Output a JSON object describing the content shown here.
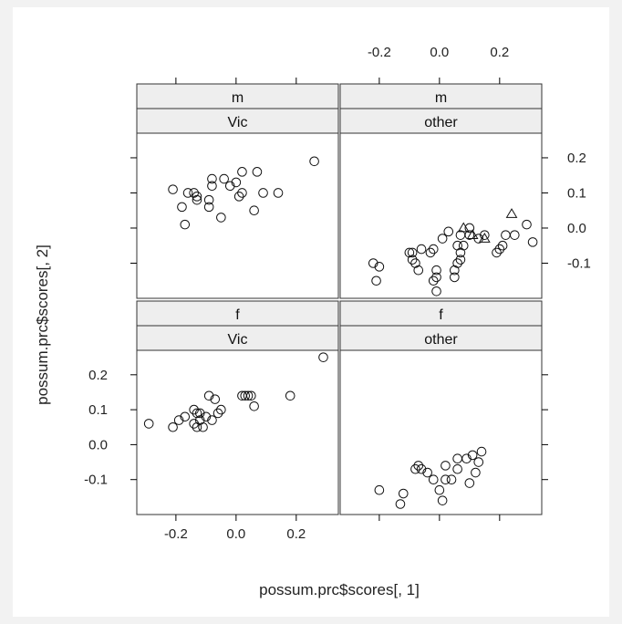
{
  "chart_data": {
    "type": "scatter",
    "layout": "lattice 2x2",
    "xlabel": "possum.prc$scores[, 1]",
    "ylabel": "possum.prc$scores[, 2]",
    "xlim": [
      -0.33,
      0.34
    ],
    "ylim": [
      -0.2,
      0.27
    ],
    "xticks": [
      -0.2,
      0.0,
      0.2
    ],
    "xtick_labels": [
      "-0.2",
      "0.0",
      "0.2"
    ],
    "yticks": [
      -0.1,
      0.0,
      0.1,
      0.2
    ],
    "ytick_labels": [
      "-0.1",
      "0.0",
      "0.1",
      "0.2"
    ],
    "grid": false,
    "background": "#ffffff",
    "strip_color": "#eeeeee",
    "panels": [
      {
        "sex": "m",
        "pop": "Vic",
        "points": [
          {
            "x": -0.21,
            "y": 0.11
          },
          {
            "x": -0.18,
            "y": 0.06
          },
          {
            "x": -0.17,
            "y": 0.01
          },
          {
            "x": -0.16,
            "y": 0.1
          },
          {
            "x": -0.14,
            "y": 0.1
          },
          {
            "x": -0.13,
            "y": 0.08
          },
          {
            "x": -0.13,
            "y": 0.09
          },
          {
            "x": -0.09,
            "y": 0.08
          },
          {
            "x": -0.09,
            "y": 0.06
          },
          {
            "x": -0.08,
            "y": 0.12
          },
          {
            "x": -0.08,
            "y": 0.14
          },
          {
            "x": -0.05,
            "y": 0.03
          },
          {
            "x": -0.04,
            "y": 0.14
          },
          {
            "x": -0.02,
            "y": 0.12
          },
          {
            "x": 0.0,
            "y": 0.13
          },
          {
            "x": 0.01,
            "y": 0.09
          },
          {
            "x": 0.02,
            "y": 0.1
          },
          {
            "x": 0.02,
            "y": 0.16
          },
          {
            "x": 0.06,
            "y": 0.05
          },
          {
            "x": 0.07,
            "y": 0.16
          },
          {
            "x": 0.09,
            "y": 0.1
          },
          {
            "x": 0.14,
            "y": 0.1
          },
          {
            "x": 0.26,
            "y": 0.19
          }
        ]
      },
      {
        "sex": "m",
        "pop": "other",
        "points": [
          {
            "x": -0.22,
            "y": -0.1
          },
          {
            "x": -0.21,
            "y": -0.15
          },
          {
            "x": -0.2,
            "y": -0.11
          },
          {
            "x": -0.1,
            "y": -0.07
          },
          {
            "x": -0.09,
            "y": -0.09
          },
          {
            "x": -0.09,
            "y": -0.07
          },
          {
            "x": -0.08,
            "y": -0.1
          },
          {
            "x": -0.07,
            "y": -0.12
          },
          {
            "x": -0.06,
            "y": -0.06
          },
          {
            "x": -0.03,
            "y": -0.07
          },
          {
            "x": -0.02,
            "y": -0.06
          },
          {
            "x": -0.02,
            "y": -0.15
          },
          {
            "x": -0.01,
            "y": -0.14
          },
          {
            "x": -0.01,
            "y": -0.12
          },
          {
            "x": -0.01,
            "y": -0.18
          },
          {
            "x": 0.01,
            "y": -0.03
          },
          {
            "x": 0.03,
            "y": -0.01
          },
          {
            "x": 0.05,
            "y": -0.14
          },
          {
            "x": 0.05,
            "y": -0.12
          },
          {
            "x": 0.06,
            "y": -0.1
          },
          {
            "x": 0.06,
            "y": -0.05
          },
          {
            "x": 0.07,
            "y": -0.02
          },
          {
            "x": 0.07,
            "y": -0.07
          },
          {
            "x": 0.07,
            "y": -0.09
          },
          {
            "x": 0.08,
            "y": -0.05
          },
          {
            "x": 0.1,
            "y": 0.0
          },
          {
            "x": 0.1,
            "y": -0.02
          },
          {
            "x": 0.13,
            "y": -0.03
          },
          {
            "x": 0.15,
            "y": -0.02
          },
          {
            "x": 0.19,
            "y": -0.07
          },
          {
            "x": 0.2,
            "y": -0.06
          },
          {
            "x": 0.21,
            "y": -0.05
          },
          {
            "x": 0.22,
            "y": -0.02
          },
          {
            "x": 0.25,
            "y": -0.02
          },
          {
            "x": 0.29,
            "y": 0.01
          },
          {
            "x": 0.31,
            "y": -0.04
          },
          {
            "x": 0.08,
            "y": 0.0,
            "shape": "triangle"
          },
          {
            "x": 0.11,
            "y": -0.02,
            "shape": "triangle"
          },
          {
            "x": 0.15,
            "y": -0.03,
            "shape": "triangle"
          },
          {
            "x": 0.24,
            "y": 0.04,
            "shape": "triangle"
          }
        ]
      },
      {
        "sex": "f",
        "pop": "Vic",
        "points": [
          {
            "x": -0.29,
            "y": 0.06
          },
          {
            "x": -0.21,
            "y": 0.05
          },
          {
            "x": -0.19,
            "y": 0.07
          },
          {
            "x": -0.17,
            "y": 0.08
          },
          {
            "x": -0.14,
            "y": 0.1
          },
          {
            "x": -0.14,
            "y": 0.06
          },
          {
            "x": -0.13,
            "y": 0.09
          },
          {
            "x": -0.13,
            "y": 0.05
          },
          {
            "x": -0.12,
            "y": 0.09
          },
          {
            "x": -0.12,
            "y": 0.07
          },
          {
            "x": -0.11,
            "y": 0.05
          },
          {
            "x": -0.1,
            "y": 0.08
          },
          {
            "x": -0.09,
            "y": 0.14
          },
          {
            "x": -0.08,
            "y": 0.07
          },
          {
            "x": -0.07,
            "y": 0.13
          },
          {
            "x": -0.06,
            "y": 0.09
          },
          {
            "x": -0.05,
            "y": 0.1
          },
          {
            "x": 0.02,
            "y": 0.14
          },
          {
            "x": 0.03,
            "y": 0.14
          },
          {
            "x": 0.04,
            "y": 0.14
          },
          {
            "x": 0.05,
            "y": 0.14
          },
          {
            "x": 0.06,
            "y": 0.11
          },
          {
            "x": 0.18,
            "y": 0.14
          },
          {
            "x": 0.29,
            "y": 0.25
          }
        ]
      },
      {
        "sex": "f",
        "pop": "other",
        "points": [
          {
            "x": -0.2,
            "y": -0.13
          },
          {
            "x": -0.13,
            "y": -0.17
          },
          {
            "x": -0.12,
            "y": -0.14
          },
          {
            "x": -0.08,
            "y": -0.07
          },
          {
            "x": -0.07,
            "y": -0.06
          },
          {
            "x": -0.06,
            "y": -0.07
          },
          {
            "x": -0.04,
            "y": -0.08
          },
          {
            "x": -0.02,
            "y": -0.1
          },
          {
            "x": 0.0,
            "y": -0.13
          },
          {
            "x": 0.01,
            "y": -0.16
          },
          {
            "x": 0.02,
            "y": -0.1
          },
          {
            "x": 0.02,
            "y": -0.06
          },
          {
            "x": 0.04,
            "y": -0.1
          },
          {
            "x": 0.06,
            "y": -0.07
          },
          {
            "x": 0.06,
            "y": -0.04
          },
          {
            "x": 0.09,
            "y": -0.04
          },
          {
            "x": 0.1,
            "y": -0.11
          },
          {
            "x": 0.11,
            "y": -0.03
          },
          {
            "x": 0.12,
            "y": -0.08
          },
          {
            "x": 0.13,
            "y": -0.05
          },
          {
            "x": 0.14,
            "y": -0.02
          }
        ]
      }
    ]
  }
}
